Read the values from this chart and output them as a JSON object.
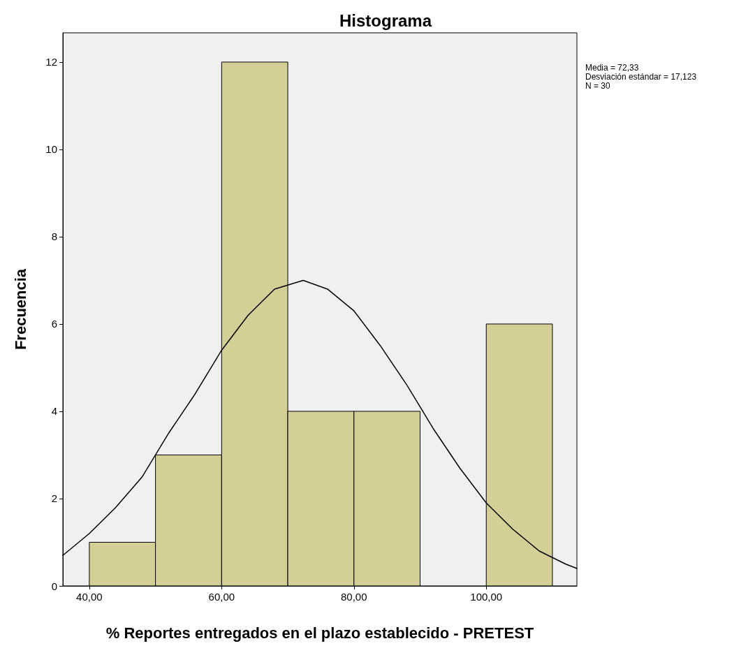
{
  "chart_data": {
    "type": "histogram",
    "title": "Histograma",
    "xlabel": "% Reportes entregados en el plazo establecido - PRETEST",
    "ylabel": "Frecuencia",
    "annotations": [
      "Media = 72,33",
      "Desviación estándar = 17,123",
      "N = 30"
    ],
    "xlim": [
      36,
      113.7
    ],
    "xticks": [
      {
        "value": 40,
        "label": "40,00"
      },
      {
        "value": 60,
        "label": "60,00"
      },
      {
        "value": 80,
        "label": "80,00"
      },
      {
        "value": 100,
        "label": "100,00"
      }
    ],
    "ylim": [
      0,
      12.67
    ],
    "yticks": [
      0,
      2,
      4,
      6,
      8,
      10,
      12
    ],
    "grid": false,
    "marker": "none",
    "series": [
      {
        "color": "#d3cf97",
        "bins": [
          40,
          50,
          60,
          70,
          80,
          90,
          100,
          110
        ],
        "values": [
          1,
          3,
          12,
          4,
          4,
          0,
          6
        ]
      },
      {
        "type": "line",
        "color": "#000000",
        "x": [
          36,
          40,
          44,
          48,
          52,
          56,
          60,
          64,
          68,
          72.33,
          76,
          80,
          84,
          88,
          92,
          96,
          100,
          104,
          108,
          112,
          113.7
        ],
        "values": [
          0.7,
          1.2,
          1.8,
          2.5,
          3.5,
          4.4,
          5.4,
          6.2,
          6.8,
          7.0,
          6.8,
          6.3,
          5.5,
          4.6,
          3.6,
          2.7,
          1.9,
          1.3,
          0.8,
          0.5,
          0.4
        ]
      }
    ]
  }
}
